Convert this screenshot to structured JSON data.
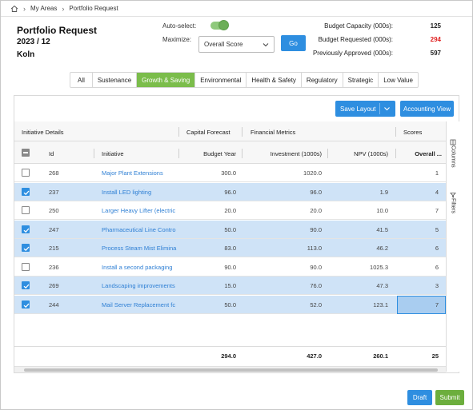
{
  "breadcrumb": {
    "items": [
      "My Areas",
      "Portfolio Request"
    ]
  },
  "header": {
    "title": "Portfolio Request",
    "period": "2023 / 12",
    "location": "Koln"
  },
  "controls": {
    "auto_select_label": "Auto-select:",
    "auto_select_on": true,
    "maximize_label": "Maximize:",
    "maximize_value": "Overall Score",
    "go_label": "Go"
  },
  "budget": {
    "capacity_label": "Budget Capacity (000s):",
    "capacity_value": "125",
    "requested_label": "Budget Requested (000s):",
    "requested_value": "294",
    "approved_label": "Previously Approved (000s):",
    "approved_value": "597",
    "requested_color": "#e02020"
  },
  "tabs": [
    "All",
    "Sustenance",
    "Growth & Saving",
    "Environmental",
    "Health & Safety",
    "Regulatory",
    "Strategic",
    "Low Value"
  ],
  "active_tab": "Growth & Saving",
  "toolbar": {
    "save_layout": "Save Layout",
    "accounting_view": "Accounting View"
  },
  "grid": {
    "groups": [
      "Initiative Details",
      "Capital Forecast",
      "Financial Metrics",
      "Scores"
    ],
    "columns": [
      "Id",
      "Initiative",
      "Budget Year",
      "Investment (1000s)",
      "NPV (1000s)",
      "Overall ..."
    ],
    "rows": [
      {
        "selected": false,
        "id": "268",
        "initiative": "Major Plant Extensions",
        "budget_year": "300.0",
        "investment": "1020.0",
        "npv": "",
        "overall": "1"
      },
      {
        "selected": true,
        "id": "237",
        "initiative": "Install LED lighting",
        "budget_year": "96.0",
        "investment": "96.0",
        "npv": "1.9",
        "overall": "4"
      },
      {
        "selected": false,
        "id": "250",
        "initiative": "Larger Heavy Lifter (electric",
        "budget_year": "20.0",
        "investment": "20.0",
        "npv": "10.0",
        "overall": "7"
      },
      {
        "selected": true,
        "id": "247",
        "initiative": "Pharmaceutical Line Contro",
        "budget_year": "50.0",
        "investment": "90.0",
        "npv": "41.5",
        "overall": "5"
      },
      {
        "selected": true,
        "id": "215",
        "initiative": "Process Steam Mist Elimina",
        "budget_year": "83.0",
        "investment": "113.0",
        "npv": "46.2",
        "overall": "6"
      },
      {
        "selected": false,
        "id": "236",
        "initiative": "Install a second packaging",
        "budget_year": "90.0",
        "investment": "90.0",
        "npv": "1025.3",
        "overall": "6"
      },
      {
        "selected": true,
        "id": "269",
        "initiative": "Landscaping improvements",
        "budget_year": "15.0",
        "investment": "76.0",
        "npv": "47.3",
        "overall": "3"
      },
      {
        "selected": true,
        "id": "244",
        "initiative": "Mail Server Replacement fc",
        "budget_year": "50.0",
        "investment": "52.0",
        "npv": "123.1",
        "overall": "7"
      }
    ],
    "totals": {
      "budget_year": "294.0",
      "investment": "427.0",
      "npv": "260.1",
      "overall": "25"
    }
  },
  "side_panel": {
    "columns": "Columns",
    "filters": "Filters"
  },
  "actions": {
    "draft": "Draft",
    "submit": "Submit"
  }
}
